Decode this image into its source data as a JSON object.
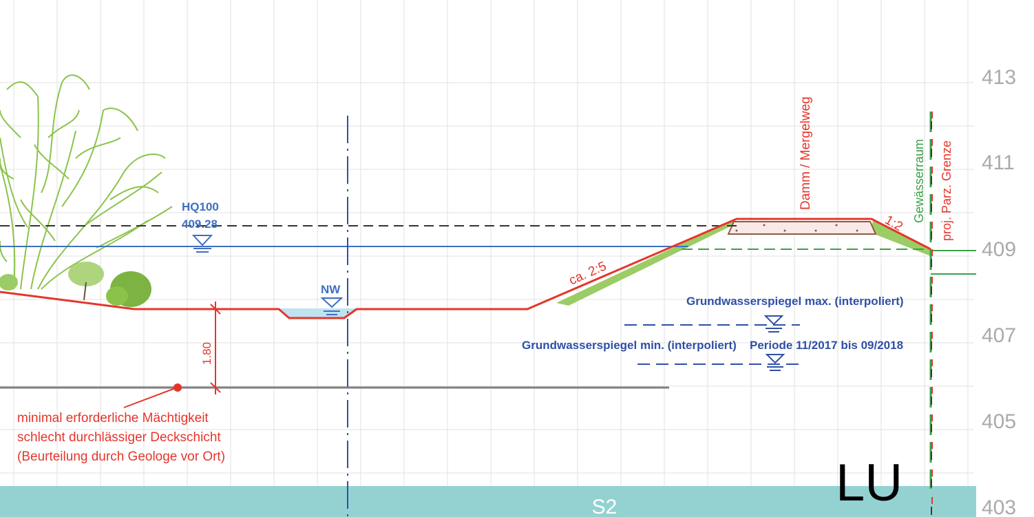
{
  "elevation_axis": {
    "tick_labels": [
      "413",
      "411",
      "409",
      "407",
      "405",
      "403"
    ],
    "unit": ""
  },
  "water_levels": {
    "hq100_label": "HQ100",
    "hq100_value": "409.28",
    "nw_label": "NW"
  },
  "dam": {
    "label": "Damm / Mergelweg",
    "slope_left": "ca. 2:5",
    "slope_right": "1:2"
  },
  "boundaries": {
    "gewaesserraum": "Gewässerraum",
    "parzelle": "proj. Parz. Grenze"
  },
  "groundwater": {
    "max_label": "Grundwasserspiegel max. (interpoliert)",
    "min_label": "Grundwasserspiegel min. (interpoliert)",
    "period_label": "Periode 11/2017 bis 09/2018"
  },
  "cover_layer": {
    "dimension": "1.80",
    "note_line1": "minimal erforderliche Mächtigkeit",
    "note_line2": "schlecht durchlässiger Deckschicht",
    "note_line3": "(Beurteilung durch Geologe vor Ort)"
  },
  "zone_label": "S2",
  "corner_label": "LU",
  "colors": {
    "terrain": "#e5352b",
    "water_blue": "#2f4fa8",
    "dam_fill": "#9ccc65",
    "vegetation": "#7cb342",
    "zone_fill": "#94d2d2",
    "green_line": "#3aa14a",
    "grid": "#e2e2e2",
    "axis_text": "#aaaaaa"
  }
}
